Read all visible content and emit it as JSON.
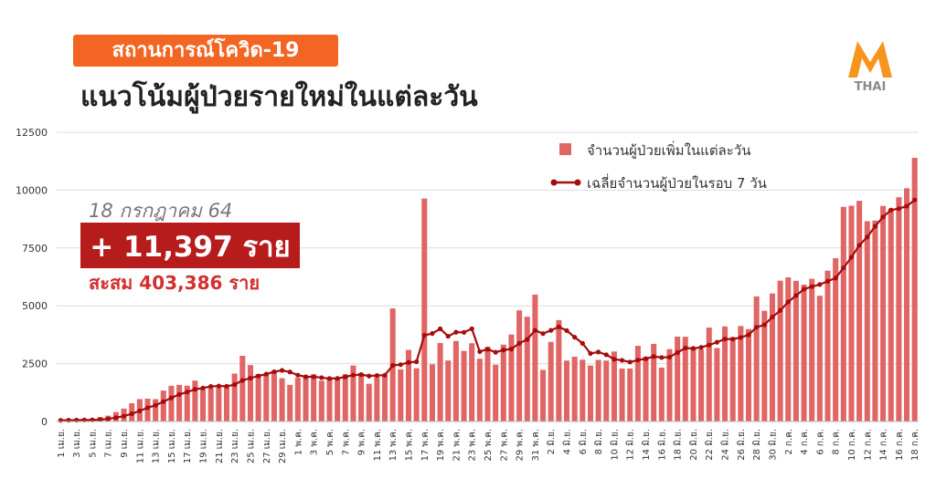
{
  "chart_data": {
    "type": "bar_line",
    "title": "สถานการณ์โควิด-19",
    "subtitle": "แนวโน้มผู้ป่วยรายใหม่ในแต่ละวัน",
    "logo": "THAI",
    "annotations": {
      "date": "18 กรกฎาคม 64",
      "headline": "+ 11,397 ราย",
      "cumulative": "สะสม 403,386 ราย"
    },
    "ylim": [
      0,
      12500
    ],
    "yticks": [
      0,
      2500,
      5000,
      7500,
      10000,
      12500
    ],
    "grid": true,
    "legend": "top-right",
    "categories": [
      "1 เม.ย.",
      null,
      "3 เม.ย.",
      null,
      "5 เม.ย.",
      null,
      "7 เม.ย.",
      null,
      "9 เม.ย.",
      null,
      "11 เม.ย.",
      null,
      "13 เม.ย.",
      null,
      "15 เม.ย.",
      null,
      "17 เม.ย.",
      null,
      "19 เม.ย.",
      null,
      "21 เม.ย.",
      null,
      "23 เม.ย.",
      null,
      "25 เม.ย.",
      null,
      "27 เม.ย.",
      null,
      "29 เม.ย.",
      null,
      "1 พ.ค.",
      null,
      "3 พ.ค.",
      null,
      "5 พ.ค.",
      null,
      "7 พ.ค.",
      null,
      "9 พ.ค.",
      null,
      "11 พ.ค.",
      null,
      "13 พ.ค.",
      null,
      "15 พ.ค.",
      null,
      "17 พ.ค.",
      null,
      "19 พ.ค.",
      null,
      "21 พ.ค.",
      null,
      "23 พ.ค.",
      null,
      "25 พ.ค.",
      null,
      "27 พ.ค.",
      null,
      "29 พ.ค.",
      null,
      "31 พ.ค.",
      null,
      "2 มิ.ย.",
      null,
      "4 มิ.ย.",
      null,
      "6 มิ.ย.",
      null,
      "8 มิ.ย.",
      null,
      "10 มิ.ย.",
      null,
      "12 มิ.ย.",
      null,
      "14 มิ.ย.",
      null,
      "16 มิ.ย.",
      null,
      "18 มิ.ย.",
      null,
      "20 มิ.ย.",
      null,
      "22 มิ.ย.",
      null,
      "24 มิ.ย.",
      null,
      "26 มิ.ย.",
      null,
      "28 มิ.ย.",
      null,
      "30 มิ.ย.",
      null,
      "2 ก.ค.",
      null,
      "4 ก.ค.",
      null,
      "6 ก.ค.",
      null,
      "8 ก.ค.",
      null,
      "10 ก.ค.",
      null,
      "12 ก.ค.",
      null,
      "14 ก.ค.",
      null,
      "16 ก.ค.",
      null,
      "18 ก.ค."
    ],
    "series": [
      {
        "name": "จำนวนผู้ป่วยเพิ่มในแต่ละวัน",
        "type": "bar",
        "color": "#e06666",
        "values": [
          26,
          84,
          89,
          84,
          50,
          194,
          250,
          405,
          559,
          789,
          967,
          985,
          965,
          1335,
          1543,
          1582,
          1547,
          1767,
          1390,
          1443,
          1458,
          1470,
          2070,
          2839,
          2438,
          2048,
          2012,
          2179,
          1871,
          1583,
          1891,
          1940,
          2041,
          1763,
          1911,
          1902,
          2044,
          2419,
          2101,
          1630,
          1919,
          1983,
          4887,
          2256,
          3095,
          2302,
          9635,
          2473,
          3394,
          2636,
          3481,
          3052,
          3382,
          2713,
          3226,
          2455,
          3323,
          3759,
          4803,
          4528,
          5485,
          2230,
          3440,
          4382,
          2632,
          2801,
          2671,
          2419,
          2662,
          2631,
          3024,
          2290,
          2290,
          3269,
          2804,
          3355,
          2331,
          3129,
          3667,
          3661,
          3175,
          3112,
          4059,
          3174,
          4108,
          3644,
          4128,
          3995,
          5406,
          4786,
          5533,
          6087,
          6230,
          6082,
          5916,
          6166,
          5434,
          6519,
          7058,
          9276,
          9326,
          9539,
          8656,
          8685,
          9317,
          9186,
          9692,
          10082,
          11397
        ]
      },
      {
        "name": "เฉลี่ยจำนวนผู้ป่วยในรอบ 7 วัน",
        "type": "line",
        "color": "#a50d0d",
        "values": [
          50,
          55,
          60,
          65,
          70,
          80,
          111,
          165,
          233,
          333,
          459,
          593,
          703,
          858,
          1020,
          1167,
          1275,
          1389,
          1447,
          1515,
          1533,
          1522,
          1592,
          1777,
          1873,
          1967,
          2048,
          2151,
          2208,
          2139,
          2003,
          1932,
          1931,
          1895,
          1857,
          1862,
          1927,
          2003,
          2026,
          1967,
          1989,
          2000,
          2426,
          2456,
          2553,
          2582,
          3725,
          3804,
          4006,
          3684,
          3859,
          3853,
          4008,
          3019,
          3126,
          2992,
          3090,
          3130,
          3380,
          3544,
          3940,
          3798,
          3938,
          4090,
          3929,
          3643,
          3377,
          2939,
          3001,
          2885,
          2691,
          2643,
          2570,
          2655,
          2710,
          2809,
          2766,
          2781,
          2978,
          3174,
          3160,
          3204,
          3305,
          3425,
          3565,
          3562,
          3629,
          3746,
          4073,
          4177,
          4514,
          4797,
          5166,
          5446,
          5720,
          5829,
          5921,
          6062,
          6201,
          6636,
          7099,
          7617,
          7973,
          8437,
          8837,
          9141,
          9200,
          9308,
          9574
        ]
      }
    ]
  }
}
